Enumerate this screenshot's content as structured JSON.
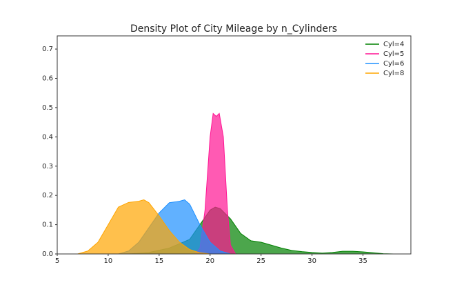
{
  "chart_data": {
    "type": "area",
    "title": "Density Plot of City Mileage by n_Cylinders",
    "xlim": [
      5,
      39.7
    ],
    "ylim": [
      0,
      0.745
    ],
    "xticks": [
      5,
      10,
      15,
      20,
      25,
      30,
      35
    ],
    "yticks": [
      {
        "value": 0,
        "label": "0.0"
      },
      0.1,
      0.2,
      0.3,
      0.4,
      0.5,
      0.6,
      0.7
    ],
    "legend": "upper right",
    "opacity": 0.7,
    "series": [
      {
        "name": "Cyl=4",
        "color": "#008000",
        "x": [
          12,
          14,
          16,
          18,
          19,
          20,
          20.5,
          21,
          22,
          23,
          24,
          25,
          26,
          27,
          28,
          29,
          30,
          31,
          32,
          33,
          34,
          35,
          36,
          37,
          38
        ],
        "values": [
          0,
          0.005,
          0.02,
          0.05,
          0.1,
          0.15,
          0.16,
          0.155,
          0.12,
          0.07,
          0.045,
          0.04,
          0.03,
          0.02,
          0.012,
          0.008,
          0.005,
          0.003,
          0.005,
          0.009,
          0.009,
          0.007,
          0.004,
          0.001,
          0
        ]
      },
      {
        "name": "Cyl=5",
        "color": "#ff1493",
        "x": [
          18.5,
          19,
          19.5,
          20,
          20.3,
          20.6,
          20.9,
          21.3,
          21.7,
          22,
          22.5
        ],
        "values": [
          0,
          0.02,
          0.15,
          0.4,
          0.48,
          0.47,
          0.48,
          0.4,
          0.15,
          0.03,
          0
        ]
      },
      {
        "name": "Cyl=6",
        "color": "#1e90ff",
        "x": [
          11,
          12,
          13,
          14,
          15,
          16,
          17,
          17.5,
          18,
          19,
          20,
          21,
          22
        ],
        "values": [
          0,
          0.01,
          0.04,
          0.09,
          0.14,
          0.175,
          0.18,
          0.185,
          0.17,
          0.1,
          0.04,
          0.01,
          0
        ]
      },
      {
        "name": "Cyl=8",
        "color": "#ffa500",
        "x": [
          7,
          8,
          9,
          10,
          11,
          12,
          13,
          13.5,
          14,
          15,
          16,
          17,
          18,
          19,
          20
        ],
        "values": [
          0,
          0.01,
          0.04,
          0.1,
          0.16,
          0.176,
          0.18,
          0.185,
          0.175,
          0.13,
          0.08,
          0.04,
          0.015,
          0.004,
          0
        ]
      }
    ]
  }
}
